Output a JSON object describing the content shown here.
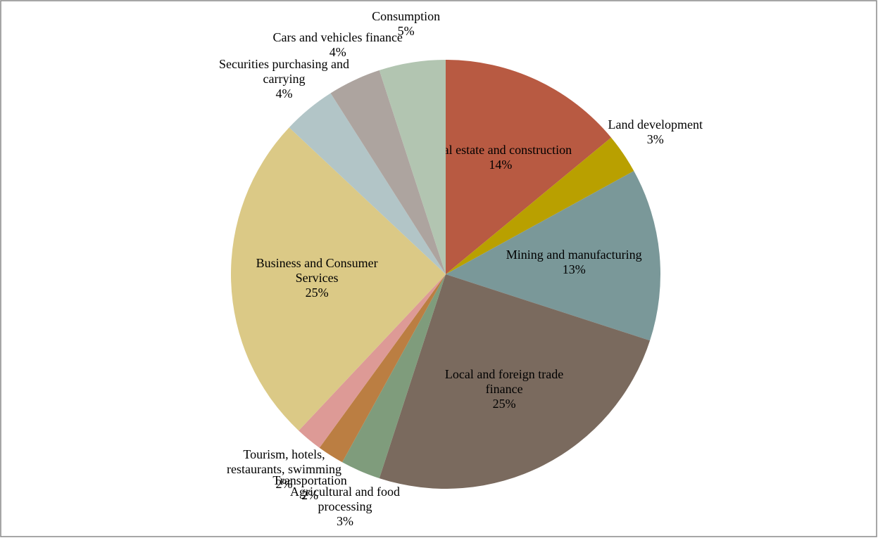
{
  "chart_data": {
    "type": "pie",
    "categories": [
      "Real estate and construction",
      "Land development",
      "Mining and manufacturing",
      "Local and foreign trade finance",
      "Agricultural and food processing",
      "Transportation",
      "Tourism, hotels, restaurants, swimming",
      "Business and Consumer Services",
      "Securities purchasing and carrying",
      "Cars and vehicles finance",
      "Consumption"
    ],
    "values": [
      14,
      3,
      13,
      25,
      3,
      2,
      2,
      25,
      4,
      4,
      5
    ],
    "value_labels": [
      "14%",
      "3%",
      "13%",
      "25%",
      "3%",
      "2%",
      "2%",
      "25%",
      "4%",
      "4%",
      "5%"
    ],
    "colors": [
      "#b85a42",
      "#b9a000",
      "#7a9899",
      "#7a6a5e",
      "#7f9c7c",
      "#bb7e42",
      "#dd9a96",
      "#dbc986",
      "#b2c5c7",
      "#ada49f",
      "#b2c5b1"
    ]
  }
}
